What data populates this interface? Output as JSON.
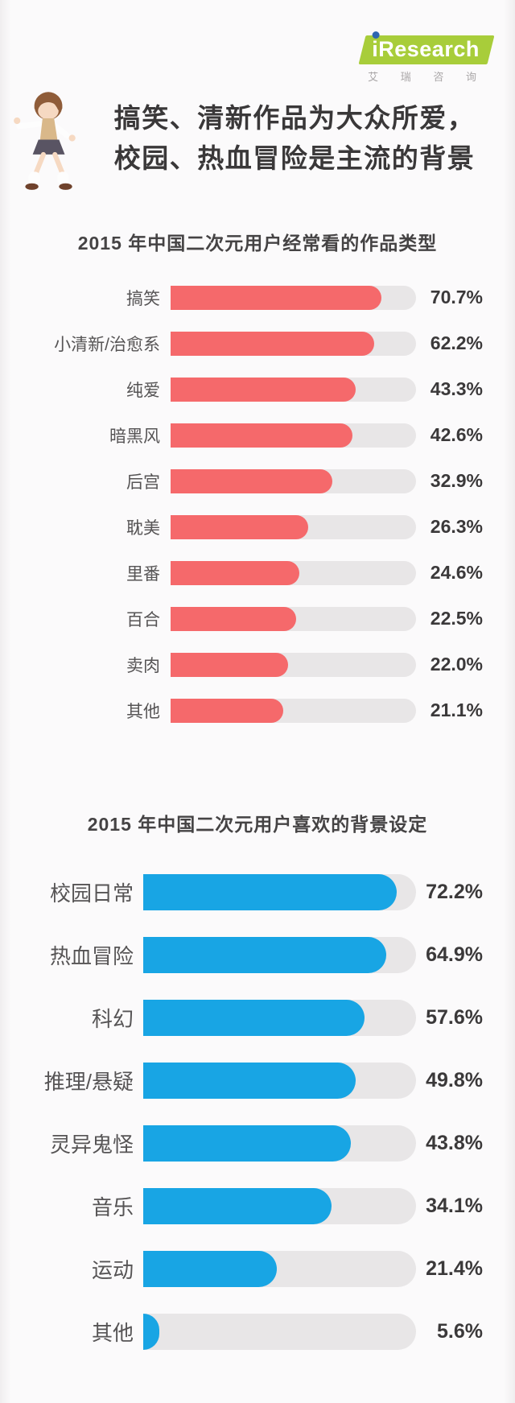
{
  "page": {
    "background": "#fbfafb"
  },
  "header": {
    "logo": {
      "brand_i": "i",
      "brand_rest": "Research",
      "subtext": "艾 瑞 咨 询",
      "plate_color": "#a8cd3a",
      "dot_color": "#2e66b0"
    },
    "mascot_icon": "anime-girl-mascot",
    "title_line1": "搞笑、清新作品为大众所爱，",
    "title_line2": "校园、热血冒险是主流的背景"
  },
  "chart_data": [
    {
      "type": "bar",
      "orientation": "horizontal",
      "title": "2015 年中国二次元用户经常看的作品类型",
      "unit": "%",
      "xlim": [
        0,
        100
      ],
      "grid": false,
      "value_position": "right-of-track",
      "bar_color": "#f5696b",
      "track_color": "#e8e6e7",
      "categories": [
        "搞笑",
        "小清新/治愈系",
        "纯爱",
        "暗黑风",
        "后宫",
        "耽美",
        "里番",
        "百合",
        "卖肉",
        "其他"
      ],
      "values": [
        70.7,
        62.2,
        43.3,
        42.6,
        32.9,
        26.3,
        24.6,
        22.5,
        22.0,
        21.1
      ],
      "labels": [
        "70.7%",
        "62.2%",
        "43.3%",
        "42.6%",
        "32.9%",
        "26.3%",
        "24.6%",
        "22.5%",
        "22.0%",
        "21.1%"
      ],
      "fill_fractions": [
        0.86,
        0.83,
        0.755,
        0.74,
        0.66,
        0.56,
        0.525,
        0.51,
        0.48,
        0.46
      ]
    },
    {
      "type": "bar",
      "orientation": "horizontal",
      "title": "2015 年中国二次元用户喜欢的背景设定",
      "unit": "%",
      "xlim": [
        0,
        100
      ],
      "grid": false,
      "value_position": "right-of-track",
      "bar_color": "#18a5e4",
      "track_color": "#e8e6e7",
      "categories": [
        "校园日常",
        "热血冒险",
        "科幻",
        "推理/悬疑",
        "灵异鬼怪",
        "音乐",
        "运动",
        "其他"
      ],
      "values": [
        72.2,
        64.9,
        57.6,
        49.8,
        43.8,
        34.1,
        21.4,
        5.6
      ],
      "labels": [
        "72.2%",
        "64.9%",
        "57.6%",
        "49.8%",
        "43.8%",
        "34.1%",
        "21.4%",
        "5.6%"
      ],
      "fill_fractions": [
        0.93,
        0.89,
        0.81,
        0.78,
        0.76,
        0.69,
        0.49,
        0.06
      ]
    }
  ]
}
